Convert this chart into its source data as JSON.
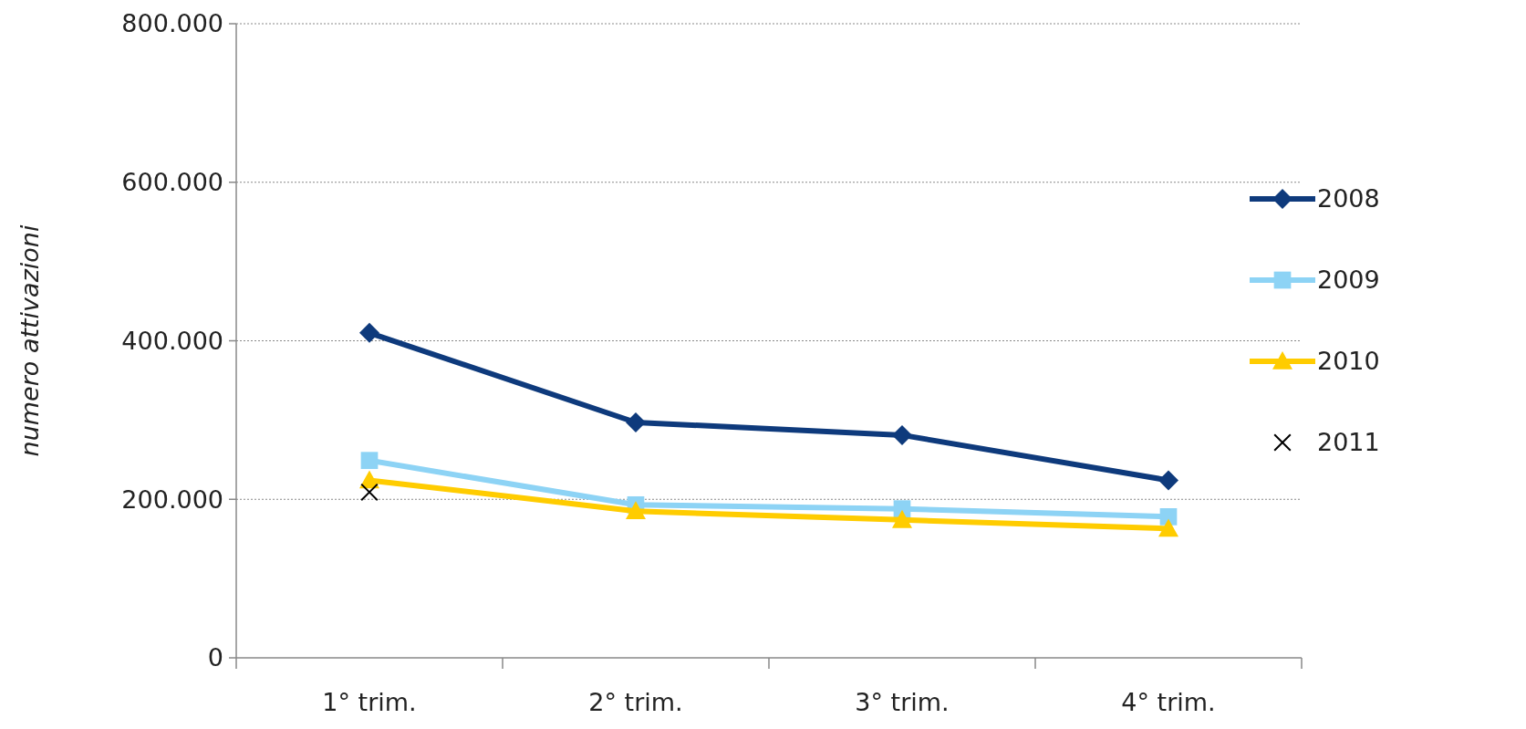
{
  "chart_data": {
    "type": "line",
    "ylabel": "numero attivazioni",
    "categories": [
      "1° trim.",
      "2° trim.",
      "3° trim.",
      "4° trim."
    ],
    "ylim": [
      0,
      800000
    ],
    "yticks": [
      {
        "value": 0,
        "label": "0"
      },
      {
        "value": 200000,
        "label": "200.000"
      },
      {
        "value": 400000,
        "label": "400.000"
      },
      {
        "value": 600000,
        "label": "600.000"
      },
      {
        "value": 800000,
        "label": "800.000"
      }
    ],
    "grid": "y",
    "legend": "right",
    "series": [
      {
        "name": "2008",
        "color": "#0e3a7c",
        "marker": "diamond",
        "values": [
          410000,
          297000,
          281000,
          224000
        ]
      },
      {
        "name": "2009",
        "color": "#8dd3f5",
        "marker": "square",
        "values": [
          249000,
          193000,
          188000,
          178000
        ]
      },
      {
        "name": "2010",
        "color": "#ffcc00",
        "marker": "triangle",
        "values": [
          224000,
          185000,
          174000,
          163000
        ]
      },
      {
        "name": "2011",
        "type": "scatter",
        "color": "#000000",
        "marker": "cross",
        "values": [
          209000,
          null,
          null,
          null
        ]
      }
    ]
  }
}
